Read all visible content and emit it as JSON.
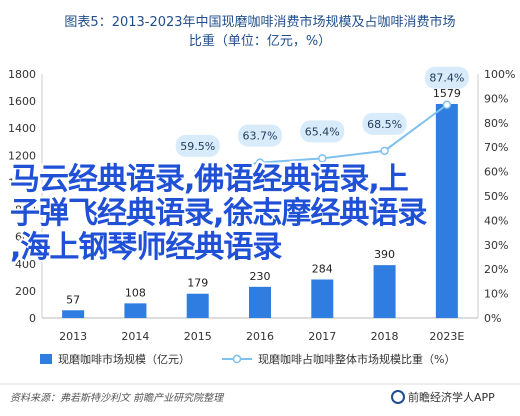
{
  "chart_data": {
    "type": "bar+line",
    "title": "图表5：2013-2023年中国现磨咖啡消费市场规模及占咖啡消费市场比重（单位：亿元，%）",
    "title_lines": [
      "图表5：2013-2023年中国现磨咖啡消费市场规模及占咖啡消费市场",
      "比重（单位：亿元，%）"
    ],
    "categories": [
      "2013",
      "2014",
      "2015",
      "2016",
      "2017",
      "2018",
      "2023E"
    ],
    "series": [
      {
        "name": "现磨咖啡市场规模（亿元）",
        "type": "bar",
        "axis": "left",
        "values": [
          57,
          108,
          179,
          230,
          284,
          390,
          1579
        ]
      },
      {
        "name": "现磨咖啡占咖啡整体市场规模比重（%）",
        "type": "line",
        "axis": "right",
        "values": [
          null,
          null,
          59.5,
          63.7,
          65.4,
          68.5,
          87.4
        ]
      }
    ],
    "y_left": {
      "min": 0,
      "max": 1800,
      "ticks": [
        "0",
        "200",
        "400",
        "600",
        "800",
        "1000",
        "1200",
        "1400",
        "1600",
        "1800"
      ]
    },
    "y_right": {
      "min": 0,
      "max": 100,
      "ticks": [
        "0%",
        "10%",
        "20%",
        "30%",
        "40%",
        "50%",
        "60%",
        "70%",
        "80%",
        "90%",
        "100%"
      ]
    },
    "colors": {
      "bar": "#2f7de1",
      "line": "#7ec0ee",
      "marker_fill": "#ffffff",
      "label_box": "#d8ebfa",
      "title": "#1f4e8c"
    },
    "grid": false,
    "legend_position": "bottom",
    "source": "资料来源：弗若斯特沙利文 前瞻产业研究院整理",
    "brand": "前瞻经济学人APP"
  },
  "overlay": {
    "lines": [
      "马云经典语录,佛语经典语录,上",
      "子弹飞经典语录,徐志摩经典语录",
      ",海上钢琴师经典语录"
    ]
  }
}
